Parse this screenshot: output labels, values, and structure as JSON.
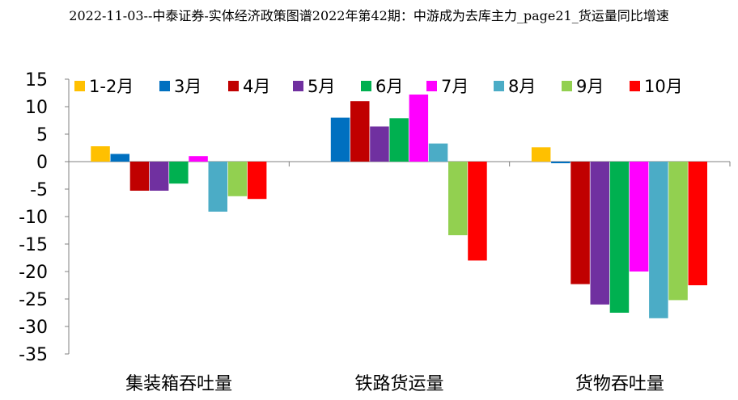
{
  "chart_data": {
    "type": "bar",
    "title": "2022-11-03--中泰证券-实体经济政策图谱2022年第42期：中游成为去库主力_page21_货运量同比增速",
    "xlabel": "",
    "ylabel": "",
    "categories": [
      "集装箱吞吐量",
      "铁路货运量",
      "货物吞吐量"
    ],
    "yticks": [
      15,
      10,
      5,
      0,
      -5,
      -10,
      -15,
      -20,
      -25,
      -30,
      -35
    ],
    "ylim": [
      -35,
      15
    ],
    "legend_position": "top",
    "grid": false,
    "series": [
      {
        "name": "1-2月",
        "color": "#FFC000",
        "values": [
          2.8,
          null,
          2.6
        ]
      },
      {
        "name": "3月",
        "color": "#0070C0",
        "values": [
          1.4,
          8.0,
          -0.3
        ]
      },
      {
        "name": "4月",
        "color": "#C00000",
        "values": [
          -5.3,
          11.0,
          -22.3
        ]
      },
      {
        "name": "5月",
        "color": "#7030A0",
        "values": [
          -5.3,
          6.4,
          -26.0
        ]
      },
      {
        "name": "6月",
        "color": "#00B050",
        "values": [
          -4.0,
          7.9,
          -27.5
        ]
      },
      {
        "name": "7月",
        "color": "#FF00FF",
        "values": [
          1.0,
          12.2,
          -20.0
        ]
      },
      {
        "name": "8月",
        "color": "#4BACC6",
        "values": [
          -9.1,
          3.3,
          -28.5
        ]
      },
      {
        "name": "9月",
        "color": "#92D050",
        "values": [
          -6.3,
          -13.4,
          -25.2
        ]
      },
      {
        "name": "10月",
        "color": "#FF0000",
        "values": [
          -6.8,
          -18.0,
          -22.5
        ]
      }
    ]
  }
}
